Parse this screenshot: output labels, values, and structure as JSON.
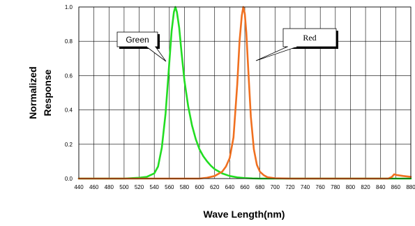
{
  "chart_data": {
    "type": "line",
    "title": "",
    "xlabel": "Wave Length(nm)",
    "ylabel_lines": [
      "Normalized",
      "Response"
    ],
    "xlim": [
      440,
      880
    ],
    "ylim": [
      0,
      1.0
    ],
    "x_ticks": [
      440,
      460,
      480,
      500,
      520,
      540,
      560,
      580,
      600,
      620,
      640,
      660,
      680,
      700,
      720,
      740,
      760,
      780,
      800,
      820,
      840,
      860,
      880
    ],
    "y_ticks": [
      "0.0",
      "0.2",
      "0.4",
      "0.6",
      "0.8",
      "1.0"
    ],
    "grid": true,
    "series": [
      {
        "name": "Green",
        "color": "#22dd22",
        "x": [
          440,
          500,
          520,
          530,
          540,
          545,
          550,
          555,
          560,
          563,
          566,
          568,
          570,
          573,
          576,
          580,
          585,
          590,
          595,
          600,
          605,
          610,
          615,
          620,
          630,
          640,
          650,
          660,
          670,
          680,
          700,
          880
        ],
        "y": [
          0.0,
          0.0,
          0.005,
          0.01,
          0.03,
          0.07,
          0.18,
          0.38,
          0.68,
          0.86,
          0.97,
          1.0,
          0.97,
          0.88,
          0.74,
          0.57,
          0.42,
          0.31,
          0.23,
          0.17,
          0.13,
          0.1,
          0.075,
          0.055,
          0.03,
          0.015,
          0.007,
          0.003,
          0.001,
          0.0,
          0.0,
          0.0
        ]
      },
      {
        "name": "Red",
        "color": "#f07020",
        "x": [
          440,
          600,
          610,
          620,
          630,
          635,
          640,
          645,
          650,
          653,
          656,
          658,
          660,
          662,
          665,
          668,
          672,
          676,
          680,
          685,
          690,
          700,
          720,
          850,
          855,
          858,
          862,
          870,
          880
        ],
        "y": [
          0.0,
          0.0,
          0.005,
          0.015,
          0.04,
          0.07,
          0.12,
          0.24,
          0.55,
          0.8,
          0.95,
          1.0,
          0.96,
          0.85,
          0.6,
          0.36,
          0.17,
          0.08,
          0.04,
          0.02,
          0.008,
          0.002,
          0.0,
          0.0,
          0.01,
          0.025,
          0.02,
          0.015,
          0.01
        ]
      }
    ],
    "annotations": [
      {
        "text": "Green",
        "series": "Green"
      },
      {
        "text": "Red",
        "series": "Red"
      }
    ]
  }
}
